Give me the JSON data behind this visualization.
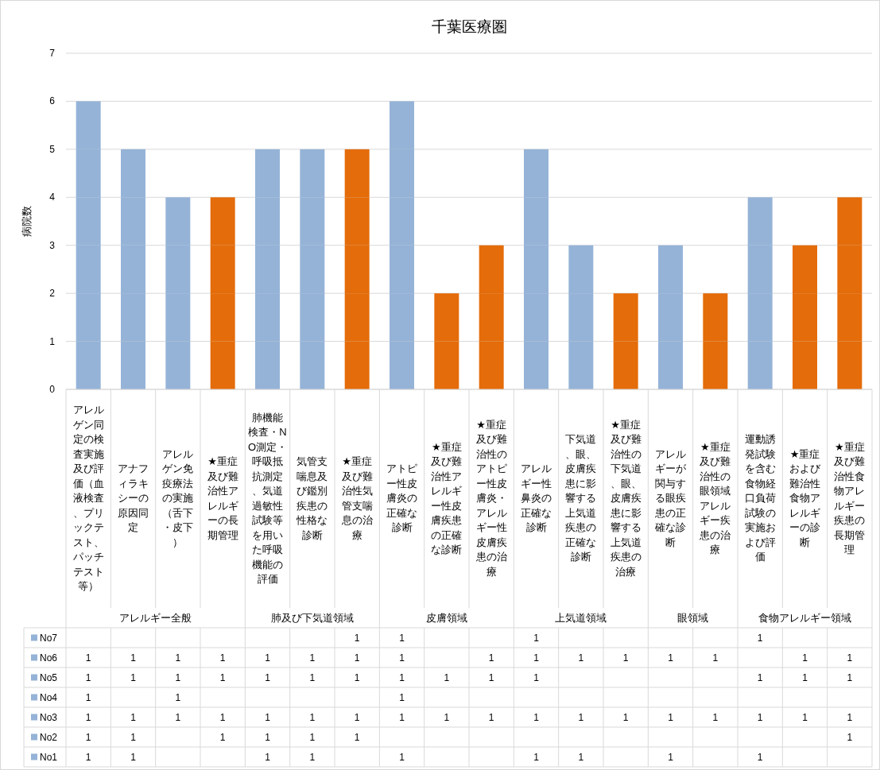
{
  "chart_data": {
    "type": "bar",
    "stacked": true,
    "title": "千葉医療圏",
    "ylabel": "病院数",
    "ylim": [
      0,
      7
    ],
    "yticks": [
      0,
      1,
      2,
      3,
      4,
      5,
      6,
      7
    ],
    "grid": "y",
    "legend": "bottom",
    "categories": [
      "アレルゲン同定の検査実施及び評価（血液検査、プリックテスト、パッチテスト等）",
      "アナフィラキシーの原因同定",
      "アレルゲン免疫療法の実施（舌下・皮下）",
      "★重症及び難治性アレルギーの長期管理",
      "肺機能検査・NO測定・呼吸抵抗測定、気道過敏性試験等を用いた呼吸機能の評価",
      "気管支喘息及び鑑別疾患の性格な診断",
      "★重症及び難治性気管支喘息の治療",
      "アトピー性皮膚炎の正確な診断",
      "★重症及び難治性アレルギー性皮膚疾患の正確な診断",
      "★重症及び難治性のアトピー性皮膚炎・アレルギー性皮膚疾患の治療",
      "アレルギー性鼻炎の正確な診断",
      "下気道、眼、皮膚疾患に影響する上気道疾患の正確な診断",
      "★重症及び難治性の下気道、眼、皮膚疾患に影響する上気道疾患の治療",
      "アレルギーが関与する眼疾患の正確な診断",
      "★重症及び難治性の眼領域アレルギー疾患の治療",
      "運動誘発試験を含む食物経口負荷試験の実施および評価",
      "★重症および難治性食物アレルギーの診断",
      "★重症及び難治性食物アレルギー疾患の長期管理"
    ],
    "annotations": [
      "アレルギー全般",
      "肺及び下気道領域",
      "皮膚領域",
      "上気道領域",
      "眼領域",
      "食物アレルギー領域"
    ],
    "series": [
      {
        "name": "No1",
        "color": "#95b3d7",
        "colors": [
          "#95b3d7",
          "#95b3d7",
          null,
          null,
          "#95b3d7",
          "#95b3d7",
          null,
          "#95b3d7",
          null,
          null,
          "#95b3d7",
          "#95b3d7",
          null,
          "#95b3d7",
          null,
          "#95b3d7",
          null,
          null
        ],
        "values": [
          1,
          1,
          null,
          null,
          1,
          1,
          null,
          1,
          null,
          null,
          1,
          1,
          null,
          1,
          null,
          1,
          null,
          null
        ],
        "value_labels": [
          "1",
          "1",
          null,
          null,
          "1",
          "1",
          null,
          "1",
          null,
          null,
          "1",
          "1",
          null,
          "1",
          null,
          "1",
          null,
          null
        ]
      },
      {
        "name": "No2",
        "color": "#95b3d7",
        "colors": [
          "#95b3d7",
          "#95b3d7",
          null,
          "#e46c0a",
          "#95b3d7",
          "#95b3d7",
          "#e46c0a",
          null,
          null,
          null,
          null,
          null,
          null,
          null,
          null,
          null,
          null,
          "#e46c0a"
        ],
        "values": [
          1,
          1,
          null,
          1,
          1,
          1,
          1,
          null,
          null,
          null,
          null,
          null,
          null,
          null,
          null,
          null,
          null,
          1
        ],
        "value_labels": [
          "1",
          "1",
          null,
          "1",
          "1",
          "1",
          "1",
          null,
          null,
          null,
          null,
          null,
          null,
          null,
          null,
          null,
          null,
          "1"
        ]
      },
      {
        "name": "No3",
        "color": "#95b3d7",
        "colors": [
          "#95b3d7",
          "#95b3d7",
          "#95b3d7",
          "#e46c0a",
          "#95b3d7",
          "#95b3d7",
          "#e46c0a",
          "#95b3d7",
          "#e46c0a",
          "#e46c0a",
          "#95b3d7",
          "#95b3d7",
          "#e46c0a",
          "#95b3d7",
          "#e46c0a",
          "#95b3d7",
          "#e46c0a",
          "#e46c0a"
        ],
        "values": [
          1,
          1,
          1,
          1,
          1,
          1,
          1,
          1,
          1,
          1,
          1,
          1,
          1,
          1,
          1,
          1,
          1,
          1
        ],
        "value_labels": [
          "1",
          "1",
          "1",
          "1",
          "1",
          "1",
          "1",
          "1",
          "1",
          "1",
          "1",
          "1",
          "1",
          "1",
          "1",
          "1",
          "1",
          "1"
        ]
      },
      {
        "name": "No4",
        "color": "#95b3d7",
        "colors": [
          "#95b3d7",
          null,
          "#95b3d7",
          null,
          null,
          null,
          null,
          "#95b3d7",
          null,
          null,
          null,
          null,
          null,
          null,
          null,
          null,
          null,
          null
        ],
        "values": [
          1,
          null,
          1,
          null,
          null,
          null,
          null,
          1,
          null,
          null,
          null,
          null,
          null,
          null,
          null,
          null,
          null,
          null
        ],
        "value_labels": [
          "1",
          null,
          "1",
          null,
          null,
          null,
          null,
          "1",
          null,
          null,
          null,
          null,
          null,
          null,
          null,
          null,
          null,
          null
        ]
      },
      {
        "name": "No5",
        "color": "#95b3d7",
        "colors": [
          "#95b3d7",
          "#95b3d7",
          "#95b3d7",
          "#e46c0a",
          "#95b3d7",
          "#95b3d7",
          "#e46c0a",
          "#95b3d7",
          "#e46c0a",
          "#e46c0a",
          "#95b3d7",
          null,
          null,
          null,
          null,
          "#95b3d7",
          "#e46c0a",
          "#e46c0a"
        ],
        "values": [
          1,
          1,
          1,
          1,
          1,
          1,
          1,
          1,
          1,
          1,
          1,
          null,
          null,
          null,
          null,
          1,
          1,
          1
        ],
        "value_labels": [
          "1",
          "1",
          "1",
          "1",
          "1",
          "1",
          "1",
          "1",
          "1",
          "1",
          "1",
          null,
          null,
          null,
          null,
          "1",
          "1",
          "1"
        ]
      },
      {
        "name": "No6",
        "color": "#95b3d7",
        "colors": [
          "#95b3d7",
          "#95b3d7",
          "#95b3d7",
          "#e46c0a",
          "#95b3d7",
          "#95b3d7",
          "#e46c0a",
          "#95b3d7",
          null,
          "#e46c0a",
          "#95b3d7",
          "#95b3d7",
          "#e46c0a",
          "#95b3d7",
          "#e46c0a",
          null,
          "#e46c0a",
          "#e46c0a"
        ],
        "values": [
          1,
          1,
          1,
          1,
          1,
          1,
          1,
          1,
          null,
          1,
          1,
          1,
          1,
          1,
          1,
          null,
          1,
          1
        ],
        "value_labels": [
          "1",
          "1",
          "1",
          "1",
          "1",
          "1",
          "1",
          "1",
          null,
          "1",
          "1",
          "1",
          "1",
          "1",
          "1",
          null,
          "1",
          "1"
        ]
      },
      {
        "name": "No7",
        "color": "#95b3d7",
        "colors": [
          null,
          null,
          null,
          null,
          null,
          null,
          "#e46c0a",
          "#95b3d7",
          null,
          null,
          "#95b3d7",
          null,
          null,
          null,
          null,
          "#95b3d7",
          null,
          null
        ],
        "values": [
          null,
          null,
          null,
          null,
          null,
          null,
          1,
          1,
          null,
          null,
          1,
          null,
          null,
          null,
          null,
          1,
          null,
          null
        ],
        "value_labels": [
          null,
          null,
          null,
          null,
          null,
          null,
          "1",
          "1",
          null,
          null,
          "1",
          null,
          null,
          null,
          null,
          "1",
          null,
          null
        ]
      }
    ]
  }
}
